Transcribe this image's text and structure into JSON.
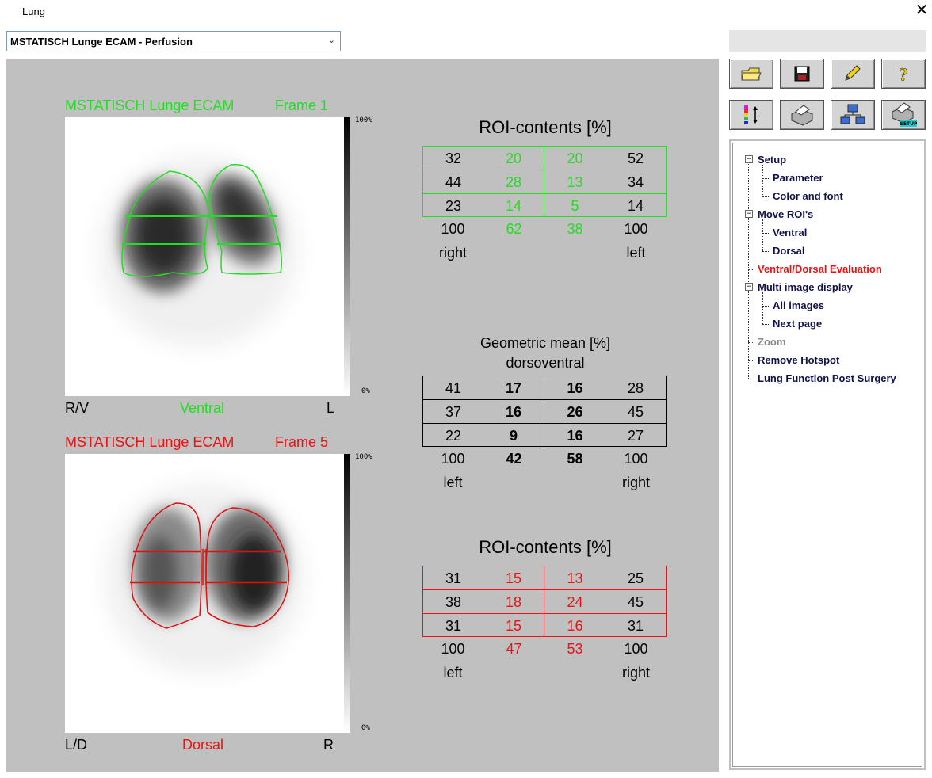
{
  "window": {
    "title": "Lung",
    "close_icon": "close-icon"
  },
  "dropdown": {
    "selected": "MSTATISCH Lunge ECAM - Perfusion"
  },
  "colors": {
    "green": "#22dd22",
    "red": "#ee1111",
    "panel": "#c0c0c0"
  },
  "top_image": {
    "study": "MSTATISCH Lunge ECAM",
    "frame": "Frame 1",
    "scale_max": "100%",
    "scale_min": "0%",
    "left_label": "R/V",
    "center_label": "Ventral",
    "right_label": "L"
  },
  "bottom_image": {
    "study": "MSTATISCH Lunge ECAM",
    "frame": "Frame 5",
    "scale_max": "100%",
    "scale_min": "0%",
    "left_label": "L/D",
    "center_label": "Dorsal",
    "right_label": "R"
  },
  "roi_top": {
    "title": "ROI-contents [%]",
    "rows": [
      [
        "32",
        "20",
        "20",
        "52"
      ],
      [
        "44",
        "28",
        "13",
        "34"
      ],
      [
        "23",
        "14",
        "5",
        "14"
      ]
    ],
    "totals": [
      "100",
      "62",
      "38",
      "100"
    ],
    "side_left": "right",
    "side_right": "left"
  },
  "geo": {
    "title": "Geometric mean [%]",
    "subtitle": "dorsoventral",
    "rows": [
      [
        "41",
        "17",
        "16",
        "28"
      ],
      [
        "37",
        "16",
        "26",
        "45"
      ],
      [
        "22",
        "9",
        "16",
        "27"
      ]
    ],
    "totals": [
      "100",
      "42",
      "58",
      "100"
    ],
    "side_left": "left",
    "side_right": "right"
  },
  "roi_bottom": {
    "title": "ROI-contents [%]",
    "rows": [
      [
        "31",
        "15",
        "13",
        "25"
      ],
      [
        "38",
        "18",
        "24",
        "45"
      ],
      [
        "31",
        "15",
        "16",
        "31"
      ]
    ],
    "totals": [
      "100",
      "47",
      "53",
      "100"
    ],
    "side_left": "left",
    "side_right": "right"
  },
  "toolbar": {
    "row1": [
      {
        "name": "open-folder-button",
        "icon": "folder-icon",
        "glyph": "📂"
      },
      {
        "name": "save-button",
        "icon": "floppy-disk-icon",
        "glyph": "💾"
      },
      {
        "name": "edit-button",
        "icon": "pencil-icon",
        "glyph": "✏"
      },
      {
        "name": "help-button",
        "icon": "question-icon",
        "glyph": "?"
      }
    ],
    "row2": [
      {
        "name": "color-scale-button",
        "icon": "color-scale-icon",
        "glyph": "⋮↕"
      },
      {
        "name": "print-button",
        "icon": "printer-icon",
        "glyph": "🖶"
      },
      {
        "name": "network-button",
        "icon": "network-icon",
        "glyph": "🖧"
      },
      {
        "name": "print-setup-button",
        "icon": "printer-setup-icon",
        "glyph": "🖶"
      }
    ],
    "setup_badge": "SETUP"
  },
  "tree": {
    "setup": "Setup",
    "parameter": "Parameter",
    "color_font": "Color and font",
    "move_rois": "Move ROI's",
    "ventral": "Ventral",
    "dorsal": "Dorsal",
    "evaluation": "Ventral/Dorsal Evaluation",
    "multi": "Multi image display",
    "all_images": "All images",
    "next_page": "Next page",
    "zoom": "Zoom",
    "hotspot": "Remove Hotspot",
    "post_surgery": "Lung Function Post Surgery",
    "expander_glyph": "−"
  }
}
